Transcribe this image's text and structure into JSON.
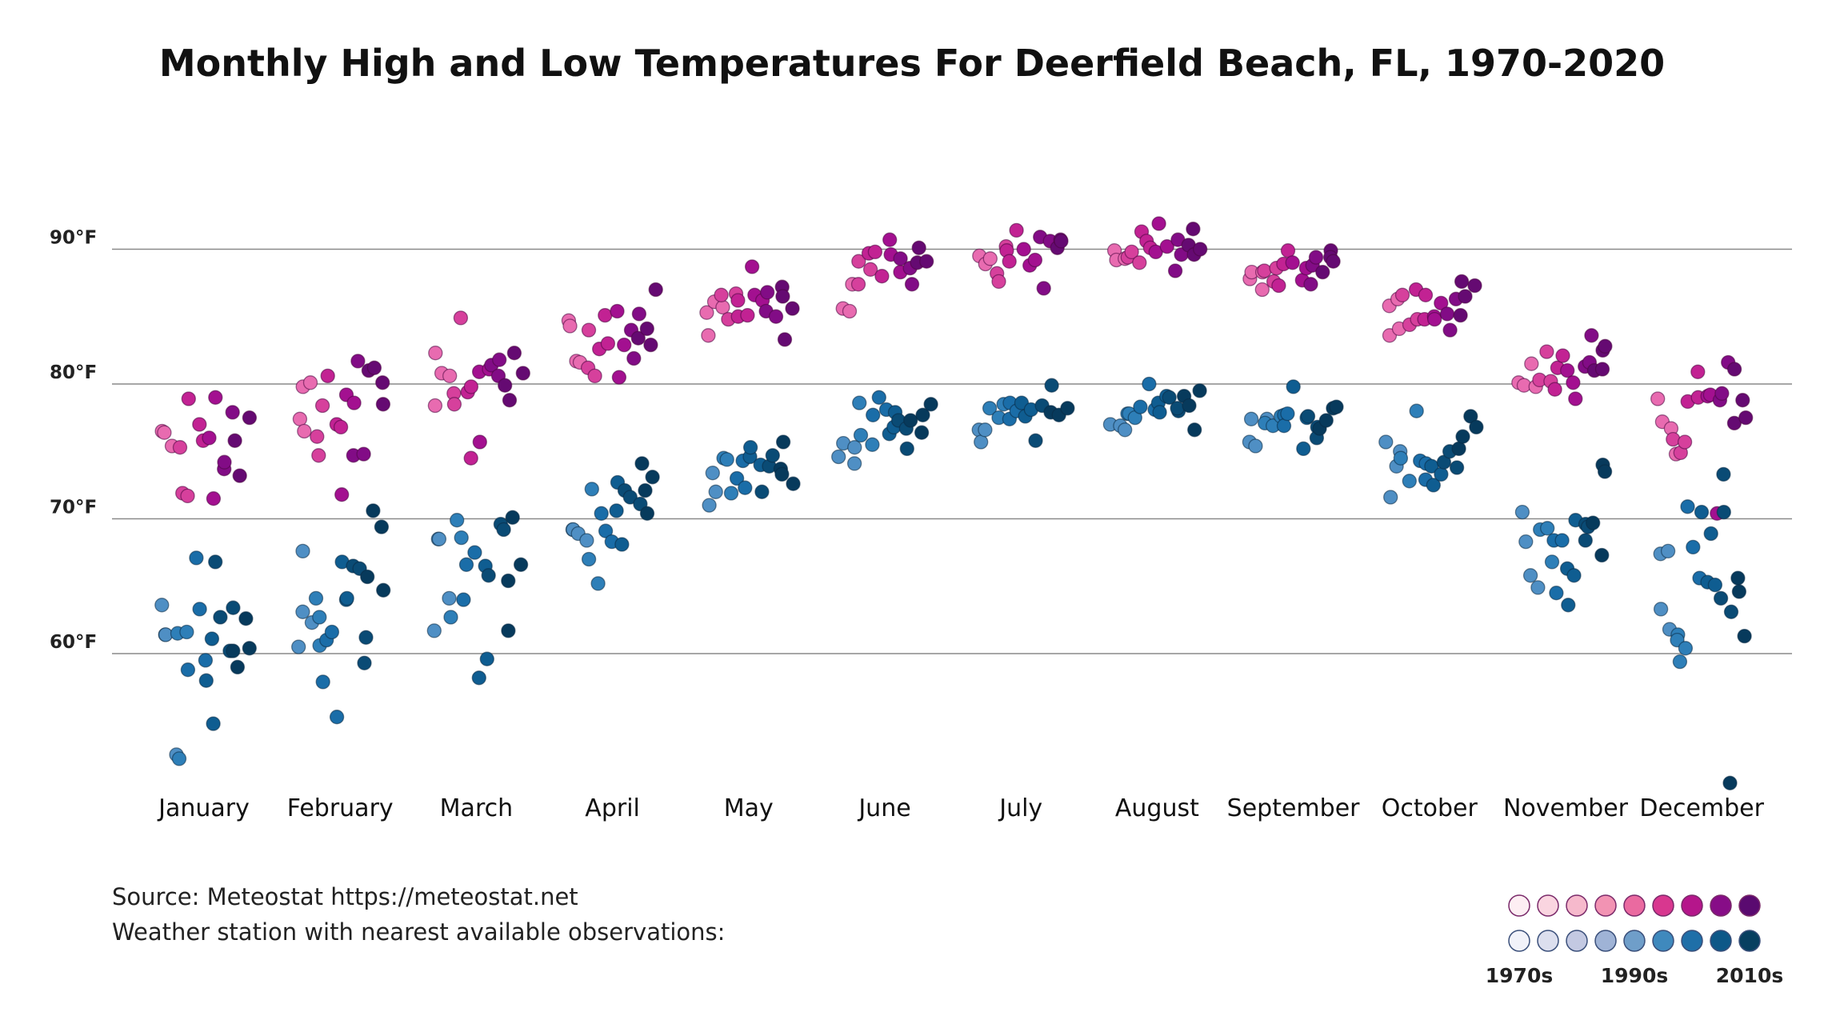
{
  "chart_data": {
    "type": "scatter",
    "title": "Monthly High and Low Temperatures For Deerfield Beach, FL, 1970-2020",
    "categories": [
      "January",
      "February",
      "March",
      "April",
      "May",
      "June",
      "July",
      "August",
      "September",
      "October",
      "November",
      "December"
    ],
    "y_ticks": [
      {
        "value": 60,
        "label": "60°F"
      },
      {
        "value": 70,
        "label": "70°F"
      },
      {
        "value": 80,
        "label": "80°F"
      },
      {
        "value": 90,
        "label": "90°F"
      }
    ],
    "ylim": [
      50,
      97
    ],
    "grid": true,
    "series": [
      {
        "kind": "high",
        "values": [
          [
            76.5,
            76.4,
            75.4,
            75.3,
            71.9,
            71.7,
            78.9,
            77.0,
            75.8,
            76.0,
            71.5,
            79.0,
            73.7,
            74.2,
            77.9,
            75.8,
            73.2,
            77.5
          ],
          [
            77.4,
            76.5,
            79.8,
            80.1,
            76.1,
            74.7,
            78.4,
            80.6,
            77.0,
            76.8,
            71.8,
            79.2,
            78.6,
            74.7,
            81.7,
            74.8,
            81.0,
            81.2,
            80.1,
            78.5
          ],
          [
            78.4,
            82.3,
            80.8,
            80.6,
            79.3,
            78.5,
            84.9,
            79.4,
            79.8,
            74.5,
            80.9,
            75.7,
            81.1,
            81.4,
            80.6,
            81.8,
            79.9,
            78.8,
            82.3,
            80.8
          ],
          [
            84.7,
            84.3,
            81.7,
            81.6,
            84.0,
            81.2,
            80.6,
            82.6,
            85.1,
            83.0,
            85.4,
            80.5,
            82.9,
            84.0,
            81.9,
            85.2,
            83.4,
            84.1,
            82.9,
            87.0
          ],
          [
            85.3,
            83.6,
            86.1,
            85.7,
            86.6,
            84.8,
            86.7,
            85.0,
            86.2,
            85.1,
            88.7,
            86.6,
            86.2,
            85.4,
            86.8,
            85.0,
            87.2,
            86.5,
            83.3,
            85.6
          ],
          [
            85.6,
            85.4,
            87.4,
            87.4,
            89.1,
            88.5,
            89.7,
            89.8,
            88.0,
            90.7,
            89.6,
            88.3,
            89.3,
            88.6,
            87.4,
            89.0,
            90.1,
            89.1
          ],
          [
            89.5,
            88.9,
            89.3,
            88.2,
            87.6,
            90.2,
            89.9,
            89.1,
            91.4,
            90.0,
            88.8,
            89.2,
            90.9,
            87.1,
            90.6,
            90.1,
            90.7,
            90.6
          ],
          [
            89.9,
            89.2,
            89.3,
            89.4,
            89.8,
            89.0,
            91.3,
            90.6,
            90.1,
            89.8,
            91.9,
            90.2,
            88.4,
            90.7,
            89.6,
            90.3,
            91.5,
            89.6,
            90.0
          ],
          [
            87.8,
            88.3,
            87.0,
            88.3,
            88.4,
            87.6,
            88.6,
            87.3,
            88.9,
            89.9,
            89.0,
            87.7,
            88.6,
            87.4,
            88.8,
            89.4,
            88.3,
            89.9,
            89.4,
            89.1
          ],
          [
            85.8,
            83.6,
            84.1,
            86.3,
            86.6,
            84.4,
            84.8,
            87.0,
            84.8,
            86.6,
            85.0,
            84.8,
            86.0,
            85.2,
            84.0,
            86.3,
            85.1,
            87.6,
            86.5,
            87.3
          ],
          [
            80.1,
            79.9,
            81.5,
            79.8,
            80.3,
            82.4,
            80.2,
            79.6,
            81.2,
            82.1,
            81.0,
            80.1,
            78.9,
            81.3,
            81.6,
            83.6,
            81.0,
            82.5,
            81.1,
            82.8
          ],
          [
            78.9,
            77.2,
            76.7,
            74.8,
            75.9,
            74.9,
            75.7,
            78.7,
            79.0,
            80.9,
            79.1,
            79.2,
            70.4,
            78.8,
            79.3,
            81.6,
            81.1,
            77.1,
            78.8,
            77.5
          ]
        ]
      },
      {
        "kind": "low",
        "values": [
          [
            63.6,
            61.4,
            61.4,
            52.5,
            52.2,
            61.5,
            61.6,
            58.8,
            67.1,
            63.3,
            59.5,
            58.0,
            54.8,
            61.1,
            66.8,
            62.7,
            60.2,
            63.4,
            60.2,
            59.0,
            62.6,
            60.4
          ],
          [
            60.5,
            63.1,
            67.6,
            62.3,
            64.1,
            60.6,
            62.7,
            57.9,
            61.0,
            61.6,
            55.3,
            66.8,
            64.0,
            64.1,
            66.5,
            66.3,
            61.2,
            59.3,
            65.7,
            70.6,
            69.4,
            64.7
          ],
          [
            61.7,
            68.5,
            68.5,
            64.1,
            62.7,
            69.9,
            68.6,
            64.0,
            66.6,
            67.5,
            58.2,
            66.5,
            59.6,
            65.8,
            69.6,
            69.2,
            65.4,
            61.7,
            70.1,
            66.6
          ],
          [
            69.2,
            69.2,
            68.9,
            68.4,
            67.0,
            72.2,
            65.2,
            70.4,
            69.1,
            68.3,
            70.6,
            72.7,
            68.1,
            72.1,
            71.6,
            71.1,
            74.1,
            72.1,
            70.4,
            73.1
          ],
          [
            71.0,
            73.4,
            72.0,
            74.5,
            74.4,
            71.9,
            73.0,
            74.3,
            72.3,
            74.6,
            75.3,
            74.0,
            72.0,
            73.9,
            74.7,
            73.7,
            73.3,
            75.7,
            72.6
          ],
          [
            74.6,
            75.6,
            75.3,
            74.1,
            78.6,
            76.2,
            75.5,
            77.7,
            79.0,
            78.1,
            76.3,
            76.8,
            77.9,
            77.3,
            75.2,
            76.7,
            77.3,
            76.4,
            77.7,
            78.5
          ],
          [
            76.6,
            75.7,
            76.6,
            78.2,
            77.5,
            78.5,
            77.4,
            78.6,
            78.0,
            78.6,
            77.6,
            78.1,
            75.8,
            78.4,
            79.9,
            77.9,
            77.7,
            78.2
          ],
          [
            77.0,
            76.9,
            76.6,
            77.8,
            77.8,
            77.5,
            78.3,
            80.0,
            78.1,
            78.6,
            77.9,
            79.1,
            79.0,
            78.0,
            78.2,
            79.1,
            78.4,
            76.6,
            79.5
          ],
          [
            75.7,
            77.4,
            75.4,
            77.4,
            77.1,
            76.9,
            77.6,
            77.7,
            76.9,
            77.8,
            79.8,
            75.2,
            77.5,
            77.6,
            76.8,
            76.0,
            76.7,
            77.3,
            78.2,
            78.3
          ],
          [
            75.7,
            71.6,
            73.9,
            75.0,
            74.5,
            72.8,
            78.0,
            74.3,
            72.9,
            74.1,
            73.9,
            72.5,
            73.3,
            74.2,
            75.0,
            73.8,
            75.2,
            76.1,
            77.6,
            76.8
          ],
          [
            70.5,
            68.3,
            65.8,
            64.9,
            69.2,
            69.3,
            66.8,
            64.5,
            68.4,
            68.4,
            66.3,
            63.6,
            65.8,
            69.9,
            69.6,
            68.4,
            69.4,
            69.7,
            74.0,
            67.3,
            73.5
          ],
          [
            67.4,
            63.3,
            61.8,
            67.6,
            61.4,
            61.0,
            59.4,
            60.4,
            70.9,
            67.9,
            65.6,
            70.5,
            65.3,
            68.9,
            65.1,
            64.1,
            73.3,
            70.5,
            63.1,
            50.4,
            65.6,
            64.6,
            61.3
          ]
        ]
      }
    ],
    "legend": {
      "placement": "bottom-right",
      "high_colors": [
        "#fdeef3",
        "#fad5e0",
        "#f6b9cc",
        "#f293b3",
        "#ea6aa0",
        "#d8378f",
        "#b5168b",
        "#870d87",
        "#5a0a70"
      ],
      "low_colors": [
        "#f1f2f9",
        "#dcdfee",
        "#c3c9e2",
        "#9fb3d6",
        "#6f9ec9",
        "#3f89bd",
        "#1f6fa8",
        "#0d5888",
        "#073f60"
      ],
      "labels": [
        "1970s",
        "1990s",
        "2010s"
      ]
    }
  },
  "source": {
    "line1": "Source: Meteostat https://meteostat.net",
    "line2": "Weather station with nearest available observations:"
  }
}
